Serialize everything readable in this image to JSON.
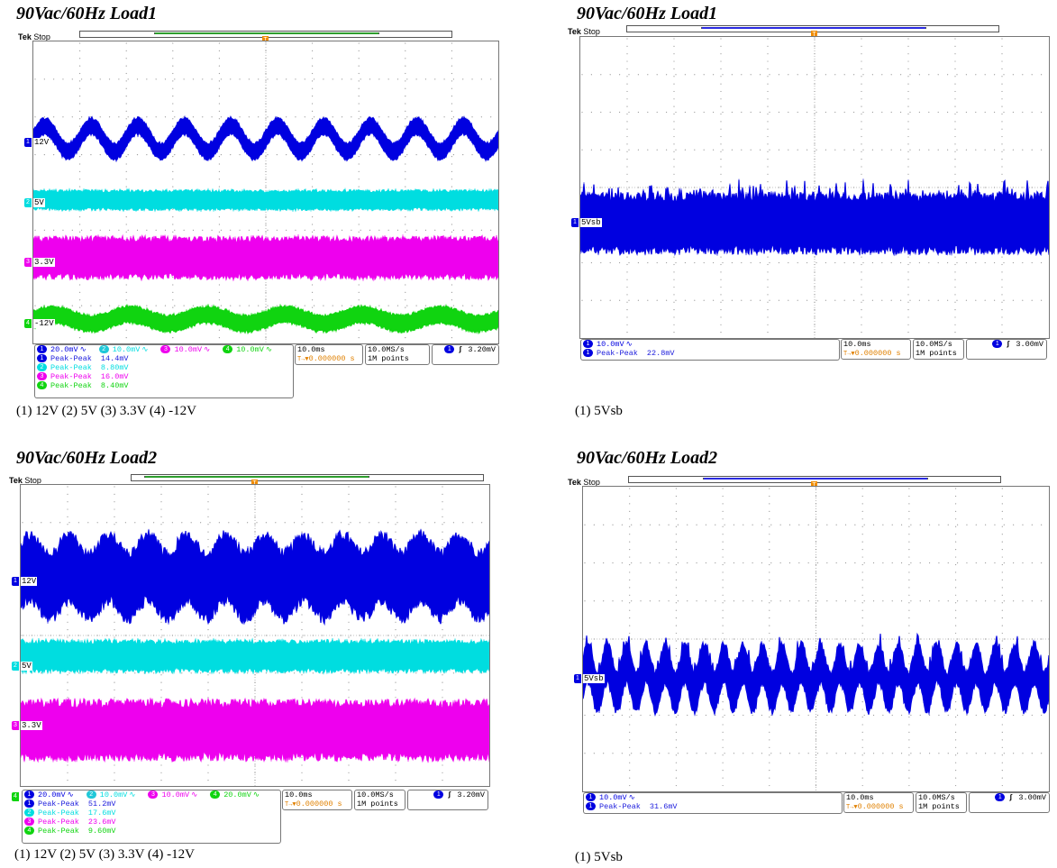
{
  "panels": [
    {
      "title": "90Vac/60Hz Load1",
      "caption": "(1) 12V (2) 5V (3) 3.3V    (4) -12V",
      "tek_state": "Stop",
      "tek_brand": "Tek",
      "record_color": "#2e9e2e",
      "channels": [
        {
          "n": "1",
          "label": "12V",
          "color": "#0000e0",
          "scale": "20.0mV",
          "pk": "14.4mV"
        },
        {
          "n": "2",
          "label": "5V",
          "color": "#00dde0",
          "scale": "10.0mV",
          "pk": "8.80mV"
        },
        {
          "n": "3",
          "label": "3.3V",
          "color": "#ee00ee",
          "scale": "10.0mV",
          "pk": "16.0mV"
        },
        {
          "n": "4",
          "label": "-12V",
          "color": "#10d410",
          "scale": "10.0mV",
          "pk": "8.40mV"
        }
      ],
      "timebase": "10.0ms",
      "trig_pos": "0.000000 s",
      "sample_rate": "10.0MS/s",
      "record_len": "1M points",
      "trig_ch": "1",
      "trig_level": "3.20mV",
      "meas_name": "Peak-Peak"
    },
    {
      "title": "90Vac/60Hz Load1",
      "caption": "(1)  5Vsb",
      "tek_state": "Stop",
      "tek_brand": "Tek",
      "record_color": "#2a2ae0",
      "channels": [
        {
          "n": "1",
          "label": "5Vsb",
          "color": "#0000e0",
          "scale": "10.0mV",
          "pk": "22.8mV"
        }
      ],
      "timebase": "10.0ms",
      "trig_pos": "0.000000 s",
      "sample_rate": "10.0MS/s",
      "record_len": "1M points",
      "trig_ch": "1",
      "trig_level": "3.00mV",
      "meas_name": "Peak-Peak"
    },
    {
      "title": "90Vac/60Hz Load2",
      "caption": "(1) 12V (2) 5V (3) 3.3V    (4) -12V",
      "tek_state": "Stop",
      "tek_brand": "Tek",
      "record_color": "#2e9e2e",
      "channels": [
        {
          "n": "1",
          "label": "12V",
          "color": "#0000e0",
          "scale": "20.0mV",
          "pk": "51.2mV"
        },
        {
          "n": "2",
          "label": "5V",
          "color": "#00dde0",
          "scale": "10.0mV",
          "pk": "17.6mV"
        },
        {
          "n": "3",
          "label": "3.3V",
          "color": "#ee00ee",
          "scale": "10.0mV",
          "pk": "23.6mV"
        },
        {
          "n": "4",
          "label": "-12V",
          "color": "#10d410",
          "scale": "20.0mV",
          "pk": "9.60mV"
        }
      ],
      "timebase": "10.0ms",
      "trig_pos": "0.000000 s",
      "sample_rate": "10.0MS/s",
      "record_len": "1M points",
      "trig_ch": "1",
      "trig_level": "3.20mV",
      "meas_name": "Peak-Peak"
    },
    {
      "title": "90Vac/60Hz Load2",
      "caption": "(1) 5Vsb",
      "tek_state": "Stop",
      "tek_brand": "Tek",
      "record_color": "#2a2ae0",
      "channels": [
        {
          "n": "1",
          "label": "5Vsb",
          "color": "#0000e0",
          "scale": "10.0mV",
          "pk": "31.6mV"
        }
      ],
      "timebase": "10.0ms",
      "trig_pos": "0.000000 s",
      "sample_rate": "10.0MS/s",
      "record_len": "1M points",
      "trig_ch": "1",
      "trig_level": "3.00mV",
      "meas_name": "Peak-Peak"
    }
  ],
  "chart_data": [
    {
      "type": "line",
      "title": "90Vac/60Hz Load1",
      "series": [
        {
          "name": "12V",
          "channel": 1,
          "volts_per_div_mV": 20.0,
          "peak_to_peak_mV": 14.4,
          "ripple_cycles_shown": 10
        },
        {
          "name": "5V",
          "channel": 2,
          "volts_per_div_mV": 10.0,
          "peak_to_peak_mV": 8.8
        },
        {
          "name": "3.3V",
          "channel": 3,
          "volts_per_div_mV": 10.0,
          "peak_to_peak_mV": 16.0
        },
        {
          "name": "-12V",
          "channel": 4,
          "volts_per_div_mV": 10.0,
          "peak_to_peak_mV": 8.4,
          "ripple_cycles_shown": 6
        }
      ],
      "time_per_div_ms": 10.0,
      "divisions_x": 10,
      "divisions_y": 8
    },
    {
      "type": "line",
      "title": "90Vac/60Hz Load1",
      "series": [
        {
          "name": "5Vsb",
          "channel": 1,
          "volts_per_div_mV": 10.0,
          "peak_to_peak_mV": 22.8
        }
      ],
      "time_per_div_ms": 10.0,
      "divisions_x": 10,
      "divisions_y": 8
    },
    {
      "type": "line",
      "title": "90Vac/60Hz Load2",
      "series": [
        {
          "name": "12V",
          "channel": 1,
          "volts_per_div_mV": 20.0,
          "peak_to_peak_mV": 51.2,
          "ripple_cycles_shown": 12
        },
        {
          "name": "5V",
          "channel": 2,
          "volts_per_div_mV": 10.0,
          "peak_to_peak_mV": 17.6
        },
        {
          "name": "3.3V",
          "channel": 3,
          "volts_per_div_mV": 10.0,
          "peak_to_peak_mV": 23.6
        },
        {
          "name": "-12V",
          "channel": 4,
          "volts_per_div_mV": 20.0,
          "peak_to_peak_mV": 9.6
        }
      ],
      "time_per_div_ms": 10.0,
      "divisions_x": 10,
      "divisions_y": 8
    },
    {
      "type": "line",
      "title": "90Vac/60Hz Load2",
      "series": [
        {
          "name": "5Vsb",
          "channel": 1,
          "volts_per_div_mV": 10.0,
          "peak_to_peak_mV": 31.6,
          "ripple_cycles_shown": 24
        }
      ],
      "time_per_div_ms": 10.0,
      "divisions_x": 10,
      "divisions_y": 8
    }
  ]
}
